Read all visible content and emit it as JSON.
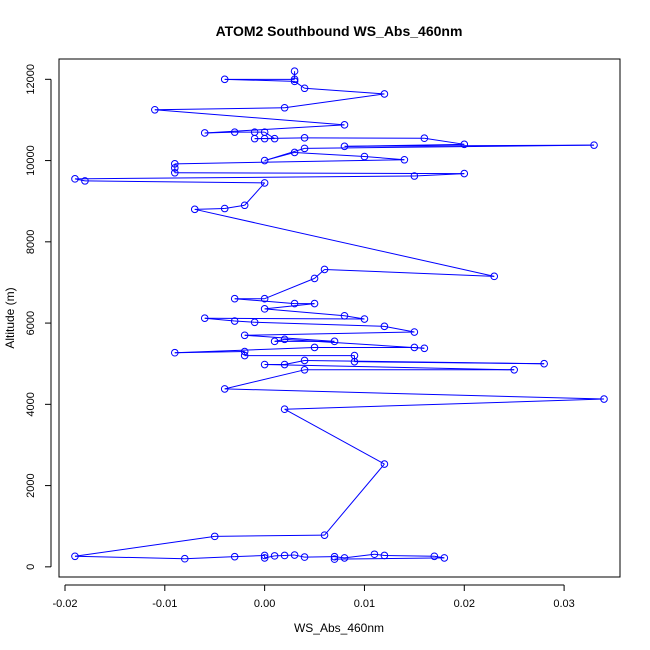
{
  "chart_data": {
    "type": "line",
    "title": "ATOM2 Southbound WS_Abs_460nm",
    "xlabel": "WS_Abs_460nm",
    "ylabel": "Altitude (m)",
    "xlim": [
      -0.0206,
      0.0356
    ],
    "ylim": [
      -250,
      12500
    ],
    "xticks": [
      -0.02,
      -0.01,
      0.0,
      0.01,
      0.02,
      0.03
    ],
    "xtick_labels": [
      "-0.02",
      "-0.01",
      "0.00",
      "0.01",
      "0.02",
      "0.03"
    ],
    "yticks": [
      0,
      2000,
      4000,
      6000,
      8000,
      10000,
      12000
    ],
    "ytick_labels": [
      "0",
      "2000",
      "4000",
      "6000",
      "8000",
      "10000",
      "12000"
    ],
    "grid": false,
    "legend": "none",
    "series": [
      {
        "color": "#0000ff",
        "marker": "open-circle",
        "points": [
          [
            0.003,
            12200
          ],
          [
            0.003,
            12000
          ],
          [
            -0.004,
            12000
          ],
          [
            0.003,
            11950
          ],
          [
            0.004,
            11780
          ],
          [
            0.012,
            11640
          ],
          [
            0.002,
            11300
          ],
          [
            -0.011,
            11250
          ],
          [
            0.008,
            10880
          ],
          [
            -0.006,
            10680
          ],
          [
            -0.003,
            10700
          ],
          [
            -0.001,
            10700
          ],
          [
            0.0,
            10700
          ],
          [
            0.001,
            10540
          ],
          [
            0.0,
            10540
          ],
          [
            -0.001,
            10540
          ],
          [
            0.004,
            10560
          ],
          [
            0.016,
            10550
          ],
          [
            0.02,
            10400
          ],
          [
            0.008,
            10350
          ],
          [
            0.033,
            10380
          ],
          [
            0.004,
            10300
          ],
          [
            0.0,
            10000
          ],
          [
            0.003,
            10200
          ],
          [
            0.01,
            10100
          ],
          [
            0.014,
            10020
          ],
          [
            -0.009,
            9920
          ],
          [
            -0.009,
            9820
          ],
          [
            -0.009,
            9700
          ],
          [
            0.02,
            9680
          ],
          [
            0.015,
            9620
          ],
          [
            -0.019,
            9550
          ],
          [
            -0.018,
            9500
          ],
          [
            0.0,
            9450
          ],
          [
            -0.002,
            8900
          ],
          [
            -0.004,
            8820
          ],
          [
            -0.007,
            8800
          ],
          [
            0.023,
            7150
          ],
          [
            0.006,
            7320
          ],
          [
            0.005,
            7100
          ],
          [
            0.0,
            6600
          ],
          [
            -0.003,
            6600
          ],
          [
            0.003,
            6480
          ],
          [
            0.005,
            6480
          ],
          [
            0.0,
            6350
          ],
          [
            0.008,
            6180
          ],
          [
            0.01,
            6100
          ],
          [
            -0.006,
            6120
          ],
          [
            -0.003,
            6050
          ],
          [
            -0.001,
            6020
          ],
          [
            0.012,
            5920
          ],
          [
            0.015,
            5780
          ],
          [
            -0.002,
            5700
          ],
          [
            0.007,
            5550
          ],
          [
            0.001,
            5550
          ],
          [
            0.002,
            5600
          ],
          [
            0.016,
            5380
          ],
          [
            0.015,
            5400
          ],
          [
            0.005,
            5400
          ],
          [
            -0.009,
            5270
          ],
          [
            -0.002,
            5300
          ],
          [
            -0.002,
            5200
          ],
          [
            0.009,
            5200
          ],
          [
            0.009,
            5050
          ],
          [
            0.028,
            5000
          ],
          [
            0.004,
            5080
          ],
          [
            0.002,
            4980
          ],
          [
            0.0,
            4980
          ],
          [
            0.025,
            4850
          ],
          [
            0.004,
            4850
          ],
          [
            -0.004,
            4380
          ],
          [
            0.034,
            4130
          ],
          [
            0.002,
            3880
          ],
          [
            0.012,
            2530
          ],
          [
            0.006,
            780
          ],
          [
            -0.005,
            750
          ],
          [
            -0.019,
            260
          ],
          [
            -0.008,
            200
          ],
          [
            -0.003,
            250
          ],
          [
            0.0,
            280
          ],
          [
            0.0,
            220
          ],
          [
            0.001,
            270
          ],
          [
            0.002,
            280
          ],
          [
            0.003,
            290
          ],
          [
            0.004,
            240
          ],
          [
            0.007,
            250
          ],
          [
            0.008,
            220
          ],
          [
            0.011,
            310
          ],
          [
            0.012,
            280
          ],
          [
            0.017,
            260
          ],
          [
            0.018,
            220
          ],
          [
            0.007,
            190
          ]
        ]
      }
    ]
  }
}
